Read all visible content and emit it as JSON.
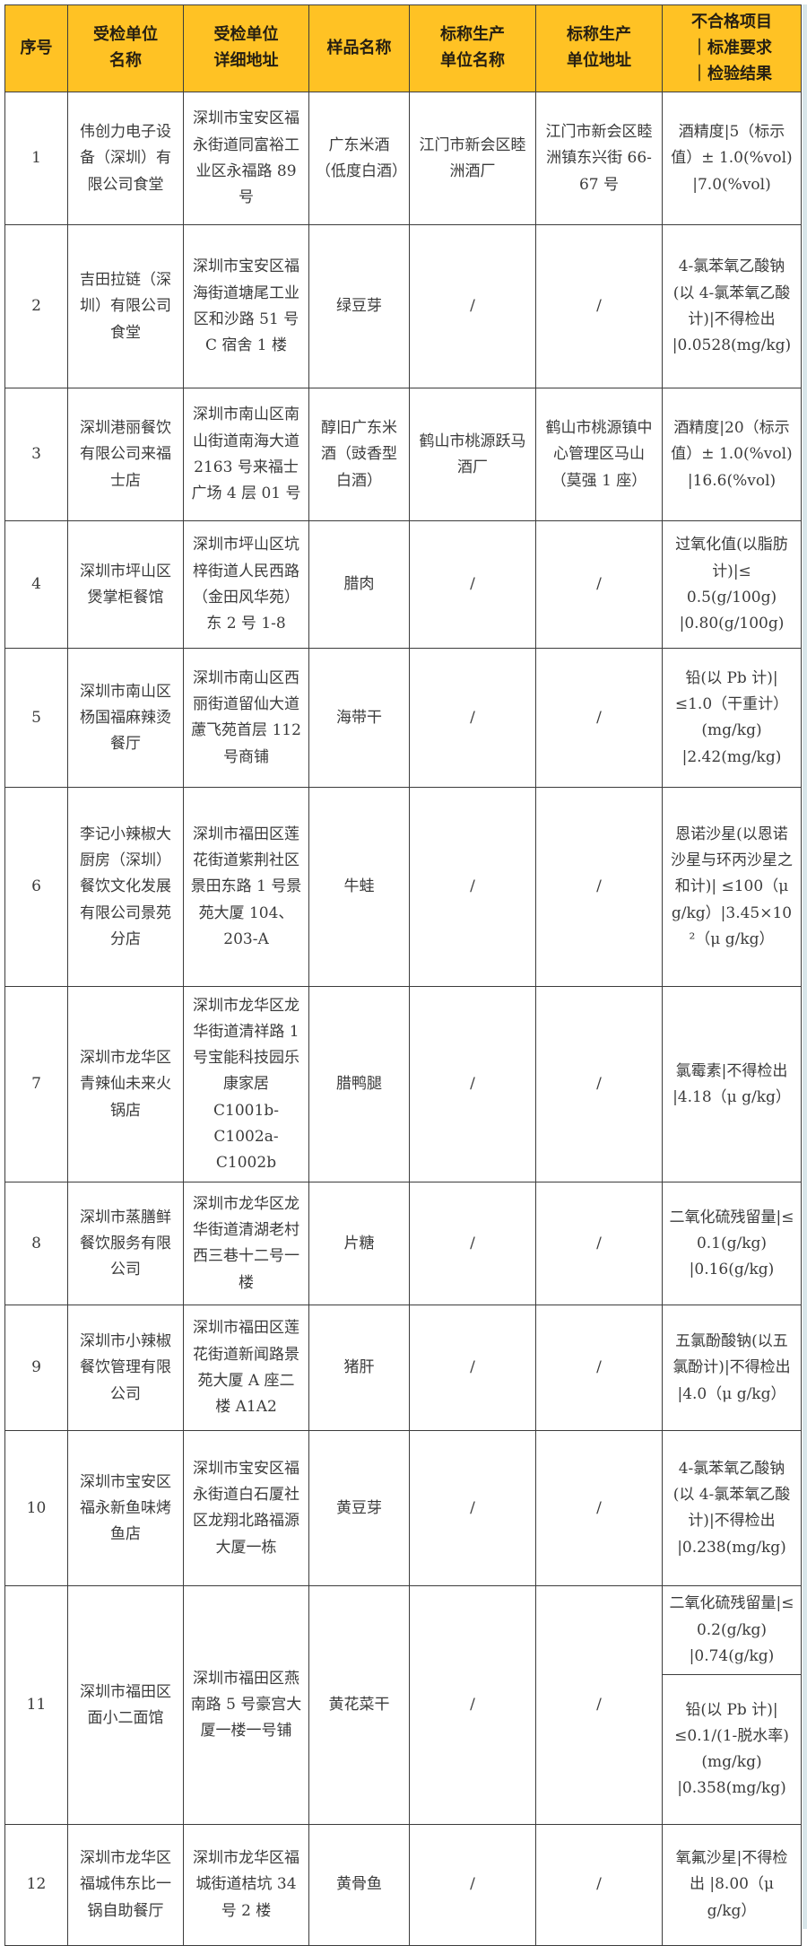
{
  "colors": {
    "header_bg": "#FFC224",
    "header_text": "#261F12",
    "body_text": "#3B3B3B",
    "border": "#3C3C3C"
  },
  "table": {
    "headers": [
      "序号",
      "受检单位\n名称",
      "受检单位\n详细地址",
      "样品名称",
      "标称生产\n单位名称",
      "标称生产\n单位地址",
      "不合格项目\n｜标准要求\n｜检验结果"
    ],
    "rows": [
      {
        "no": "1",
        "unit": "伟创力电子设备（深圳）有限公司食堂",
        "address": "深圳市宝安区福永街道同富裕工业区永福路 89 号",
        "sample": "广东米酒（低度白酒）",
        "producer": "江门市新会区睦洲酒厂",
        "producer_address": "江门市新会区睦洲镇东兴街 66-67 号",
        "results": [
          "酒精度|5（标示值）± 1.0(%vol) |7.0(%vol)"
        ]
      },
      {
        "no": "2",
        "unit": "吉田拉链（深圳）有限公司食堂",
        "address": "深圳市宝安区福海街道塘尾工业区和沙路 51 号 C 宿舍 1 楼",
        "sample": "绿豆芽",
        "producer": "/",
        "producer_address": "/",
        "results": [
          "4-氯苯氧乙酸钠(以 4-氯苯氧乙酸计)|不得检出 |0.0528(mg/kg)"
        ]
      },
      {
        "no": "3",
        "unit": "深圳港丽餐饮有限公司来福士店",
        "address": "深圳市南山区南山街道南海大道 2163 号来福士广场 4 层 01 号",
        "sample": "醇旧广东米酒（豉香型白酒）",
        "producer": "鹤山市桃源跃马酒厂",
        "producer_address": "鹤山市桃源镇中心管理区马山（莫强 1 座）",
        "results": [
          "酒精度|20（标示值）± 1.0(%vol) |16.6(%vol)"
        ]
      },
      {
        "no": "4",
        "unit": "深圳市坪山区煲掌柜餐馆",
        "address": "深圳市坪山区坑梓街道人民西路（金田风华苑）东 2 号 1-8",
        "sample": "腊肉",
        "producer": "/",
        "producer_address": "/",
        "results": [
          "过氧化值(以脂肪计)|≤ 0.5(g/100g) |0.80(g/100g)"
        ]
      },
      {
        "no": "5",
        "unit": "深圳市南山区杨国福麻辣烫餐厅",
        "address": "深圳市南山区西丽街道留仙大道藘飞苑首层 112 号商铺",
        "sample": "海带干",
        "producer": "/",
        "producer_address": "/",
        "results": [
          "铅(以 Pb 计)| ≤1.0（干重计）(mg/kg) |2.42(mg/kg)"
        ]
      },
      {
        "no": "6",
        "unit": "李记小辣椒大厨房（深圳）餐饮文化发展有限公司景苑分店",
        "address": "深圳市福田区莲花街道紫荆社区景田东路 1 号景苑大厦 104、203-A",
        "sample": "牛蛙",
        "producer": "/",
        "producer_address": "/",
        "results": [
          "恩诺沙星(以恩诺沙星与环丙沙星之和计)| ≤100（μ g/kg）|3.45×10²（μ g/kg）"
        ]
      },
      {
        "no": "7",
        "unit": "深圳市龙华区青辣仙未来火锅店",
        "address": "深圳市龙华区龙华街道清祥路 1 号宝能科技园乐康家居 C1001b-C1002a-C1002b",
        "sample": "腊鸭腿",
        "producer": "/",
        "producer_address": "/",
        "results": [
          "氯霉素|不得检出 |4.18（μ g/kg）"
        ]
      },
      {
        "no": "8",
        "unit": "深圳市蒸膳鲜餐饮服务有限公司",
        "address": "深圳市龙华区龙华街道清湖老村西三巷十二号一楼",
        "sample": "片糖",
        "producer": "/",
        "producer_address": "/",
        "results": [
          "二氧化硫残留量|≤ 0.1(g/kg) |0.16(g/kg)"
        ]
      },
      {
        "no": "9",
        "unit": "深圳市小辣椒餐饮管理有限公司",
        "address": "深圳市福田区莲花街道新闻路景苑大厦 A 座二楼 A1A2",
        "sample": "猪肝",
        "producer": "/",
        "producer_address": "/",
        "results": [
          "五氯酚酸钠(以五氯酚计)|不得检出 |4.0（μ g/kg）"
        ]
      },
      {
        "no": "10",
        "unit": "深圳市宝安区福永新鱼味烤鱼店",
        "address": "深圳市宝安区福永街道白石厦社区龙翔北路福源大厦一栋",
        "sample": "黄豆芽",
        "producer": "/",
        "producer_address": "/",
        "results": [
          "4-氯苯氧乙酸钠(以 4-氯苯氧乙酸计)|不得检出 |0.238(mg/kg)"
        ]
      },
      {
        "no": "11",
        "unit": "深圳市福田区面小二面馆",
        "address": "深圳市福田区燕南路 5 号豪宫大厦一楼一号铺",
        "sample": "黄花菜干",
        "producer": "/",
        "producer_address": "/",
        "results": [
          "二氧化硫残留量|≤ 0.2(g/kg) |0.74(g/kg)",
          "铅(以 Pb 计)| ≤0.1/(1-脱水率)(mg/kg) |0.358(mg/kg)"
        ]
      },
      {
        "no": "12",
        "unit": "深圳市龙华区福城伟东比一锅自助餐厅",
        "address": "深圳市龙华区福城街道桔坑 34 号 2 楼",
        "sample": "黄骨鱼",
        "producer": "/",
        "producer_address": "/",
        "results": [
          "氧氟沙星|不得检出 |8.00（μ g/kg）"
        ]
      }
    ]
  }
}
